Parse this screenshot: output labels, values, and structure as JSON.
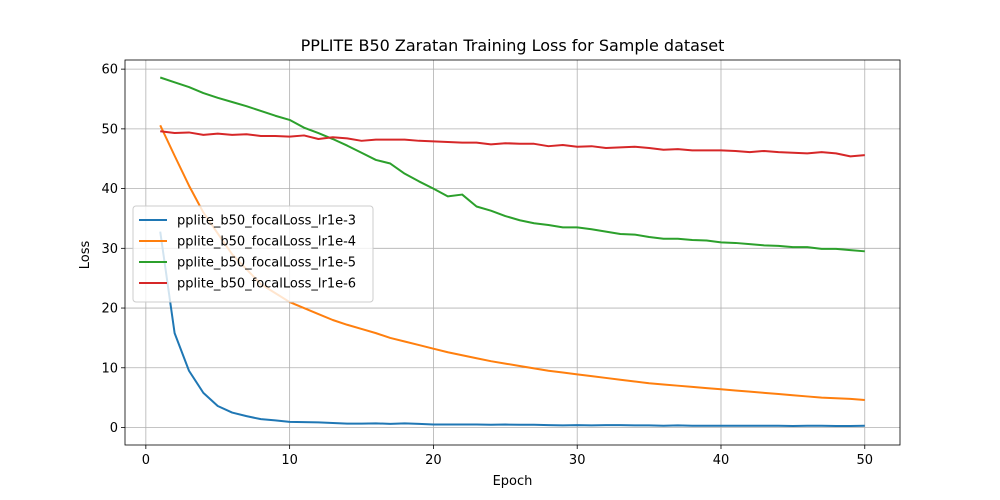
{
  "chart_data": {
    "type": "line",
    "title": "PPLITE B50 Zaratan Training Loss for Sample dataset",
    "xlabel": "Epoch",
    "ylabel": "Loss",
    "xlim": [
      -1.45,
      52.45
    ],
    "ylim": [
      -2.93,
      61.53
    ],
    "xticks": [
      0,
      10,
      20,
      30,
      40,
      50
    ],
    "yticks": [
      0,
      10,
      20,
      30,
      40,
      50,
      60
    ],
    "grid": true,
    "legend_position": "center-left",
    "x": [
      1,
      2,
      3,
      4,
      5,
      6,
      7,
      8,
      9,
      10,
      11,
      12,
      13,
      14,
      15,
      16,
      17,
      18,
      19,
      20,
      21,
      22,
      23,
      24,
      25,
      26,
      27,
      28,
      29,
      30,
      31,
      32,
      33,
      34,
      35,
      36,
      37,
      38,
      39,
      40,
      41,
      42,
      43,
      44,
      45,
      46,
      47,
      48,
      49,
      50
    ],
    "series": [
      {
        "name": "pplite_b50_focalLoss_lr1e-3",
        "color": "#1f77b4",
        "values": [
          32.8,
          15.8,
          9.5,
          5.8,
          3.6,
          2.5,
          1.9,
          1.4,
          1.2,
          0.95,
          0.9,
          0.85,
          0.75,
          0.65,
          0.65,
          0.7,
          0.6,
          0.7,
          0.6,
          0.5,
          0.5,
          0.5,
          0.5,
          0.45,
          0.5,
          0.45,
          0.45,
          0.4,
          0.35,
          0.4,
          0.35,
          0.4,
          0.4,
          0.35,
          0.35,
          0.3,
          0.35,
          0.3,
          0.3,
          0.3,
          0.3,
          0.3,
          0.3,
          0.3,
          0.25,
          0.3,
          0.3,
          0.25,
          0.25,
          0.3
        ]
      },
      {
        "name": "pplite_b50_focalLoss_lr1e-4",
        "color": "#ff7f0e",
        "values": [
          50.6,
          45.5,
          40.5,
          36.0,
          32.5,
          29.0,
          26.5,
          24.0,
          22.5,
          21.0,
          20.0,
          19.0,
          18.0,
          17.2,
          16.5,
          15.8,
          15.0,
          14.4,
          13.8,
          13.2,
          12.6,
          12.1,
          11.6,
          11.1,
          10.7,
          10.3,
          9.9,
          9.5,
          9.2,
          8.9,
          8.6,
          8.3,
          8.0,
          7.7,
          7.4,
          7.2,
          7.0,
          6.8,
          6.6,
          6.4,
          6.2,
          6.0,
          5.8,
          5.6,
          5.4,
          5.2,
          5.0,
          4.9,
          4.8,
          4.6
        ]
      },
      {
        "name": "pplite_b50_focalLoss_lr1e-5",
        "color": "#2ca02c",
        "values": [
          58.6,
          57.8,
          57.0,
          56.0,
          55.2,
          54.5,
          53.8,
          53.0,
          52.2,
          51.5,
          50.2,
          49.3,
          48.3,
          47.2,
          46.0,
          44.8,
          44.2,
          42.5,
          41.2,
          40.0,
          38.7,
          39.0,
          37.0,
          36.3,
          35.4,
          34.7,
          34.2,
          33.9,
          33.5,
          33.5,
          33.2,
          32.8,
          32.4,
          32.3,
          31.9,
          31.6,
          31.6,
          31.4,
          31.3,
          31.0,
          30.9,
          30.7,
          30.5,
          30.4,
          30.2,
          30.2,
          29.9,
          29.9,
          29.7,
          29.5
        ]
      },
      {
        "name": "pplite_b50_focalLoss_lr1e-6",
        "color": "#d62728",
        "values": [
          49.6,
          49.3,
          49.4,
          49.0,
          49.2,
          49.0,
          49.1,
          48.8,
          48.8,
          48.7,
          48.9,
          48.3,
          48.6,
          48.4,
          48.0,
          48.2,
          48.2,
          48.2,
          48.0,
          47.9,
          47.8,
          47.7,
          47.7,
          47.4,
          47.6,
          47.5,
          47.5,
          47.1,
          47.3,
          47.0,
          47.1,
          46.8,
          46.9,
          47.0,
          46.8,
          46.5,
          46.6,
          46.4,
          46.4,
          46.4,
          46.3,
          46.1,
          46.3,
          46.1,
          46.0,
          45.9,
          46.1,
          45.9,
          45.4,
          45.6
        ]
      }
    ]
  }
}
